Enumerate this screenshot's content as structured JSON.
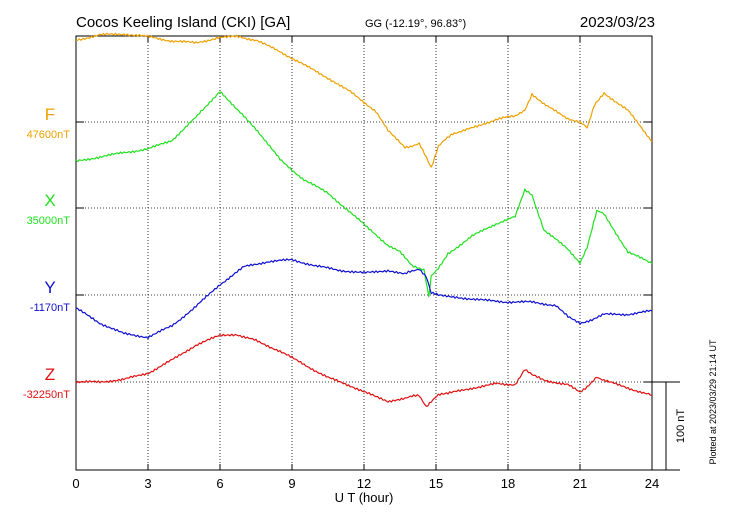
{
  "header": {
    "station": "Cocos Keeling Island (CKI)  [GA]",
    "coords": "GG (-12.19°,  96.83°)",
    "date": "2023/03/23"
  },
  "side_note": "Plotted at 2023/03/29 21:14 UT",
  "scale_bar_label": "100 nT",
  "chart_data": {
    "type": "line",
    "xlabel": "U T (hour)",
    "xlim": [
      0,
      24
    ],
    "x_ticks": [
      0,
      3,
      6,
      9,
      12,
      15,
      18,
      21,
      24
    ],
    "grid": true,
    "scale_bar_nT": 100,
    "series": [
      {
        "name": "F",
        "baseline_label": "47600nT",
        "baseline": 47600,
        "color": "#f0a000",
        "x": [
          0,
          1,
          2,
          3,
          4,
          5,
          6,
          6.7,
          7.5,
          8.5,
          9.5,
          10.5,
          11.5,
          12.5,
          13.0,
          13.7,
          14.3,
          14.6,
          14.8,
          15.1,
          15.7,
          16.5,
          17.5,
          18.3,
          18.7,
          19.0,
          19.5,
          20.5,
          21.0,
          21.3,
          21.6,
          22.0,
          23.0,
          24.0
        ],
        "values": [
          47693,
          47699,
          47700,
          47697,
          47692,
          47690,
          47696,
          47697,
          47693,
          47680,
          47665,
          47650,
          47633,
          47612,
          47590,
          47571,
          47575,
          47560,
          47548,
          47573,
          47587,
          47593,
          47603,
          47607,
          47613,
          47632,
          47620,
          47604,
          47600,
          47593,
          47620,
          47633,
          47613,
          47578
        ]
      },
      {
        "name": "X",
        "baseline_label": "35000nT",
        "baseline": 35000,
        "color": "#20e020",
        "x": [
          0,
          1,
          2,
          3,
          4,
          5,
          6,
          6.7,
          7.5,
          8.5,
          9.5,
          10.5,
          11.5,
          12.5,
          13.0,
          13.5,
          14.0,
          14.5,
          14.7,
          14.8,
          15.1,
          15.5,
          16.5,
          17.5,
          18.3,
          18.7,
          19.0,
          19.5,
          20.5,
          21.0,
          21.3,
          21.7,
          22.0,
          23.0,
          24.0
        ],
        "values": [
          35053,
          35058,
          35063,
          35067,
          35077,
          35103,
          35133,
          35112,
          35090,
          35055,
          35032,
          35017,
          34993,
          34970,
          34957,
          34950,
          34935,
          34930,
          34900,
          34922,
          34932,
          34948,
          34968,
          34982,
          34990,
          35020,
          35015,
          34975,
          34953,
          34938,
          34955,
          34997,
          34993,
          34950,
          34937
        ]
      },
      {
        "name": "Y",
        "baseline_label": "-1170nT",
        "baseline": -1170,
        "color": "#1010d0",
        "x": [
          0,
          1,
          2,
          3,
          4,
          5,
          6,
          7,
          8,
          9,
          10,
          11,
          12,
          13,
          13.7,
          14.3,
          14.6,
          14.8,
          15.1,
          16.0,
          17.0,
          18.0,
          19.0,
          20.0,
          20.5,
          21.0,
          21.5,
          22.0,
          23.0,
          24.0
        ],
        "values": [
          -1185,
          -1202,
          -1214,
          -1218,
          -1205,
          -1183,
          -1158,
          -1138,
          -1132,
          -1130,
          -1137,
          -1142,
          -1145,
          -1142,
          -1146,
          -1140,
          -1150,
          -1168,
          -1170,
          -1173,
          -1176,
          -1178,
          -1178,
          -1182,
          -1195,
          -1202,
          -1198,
          -1192,
          -1192,
          -1188
        ]
      },
      {
        "name": "Z",
        "baseline_label": "-32250nT",
        "baseline": -32250,
        "color": "#e01010",
        "x": [
          0,
          1,
          2,
          3,
          4,
          5,
          6,
          6.7,
          7.5,
          8.5,
          9.5,
          10.5,
          11.5,
          12.5,
          13.0,
          13.7,
          14.3,
          14.6,
          14.8,
          15.1,
          15.5,
          16.5,
          17.5,
          18.3,
          18.7,
          19.0,
          19.5,
          20.5,
          21.0,
          21.3,
          21.7,
          22.0,
          23.0,
          24.0
        ],
        "values": [
          -32250,
          -32250,
          -32247,
          -32240,
          -32225,
          -32208,
          -32197,
          -32196,
          -32203,
          -32215,
          -32230,
          -32245,
          -32255,
          -32267,
          -32272,
          -32268,
          -32265,
          -32278,
          -32272,
          -32265,
          -32263,
          -32257,
          -32252,
          -32253,
          -32235,
          -32242,
          -32248,
          -32253,
          -32262,
          -32255,
          -32244,
          -32248,
          -32257,
          -32265
        ]
      }
    ]
  }
}
